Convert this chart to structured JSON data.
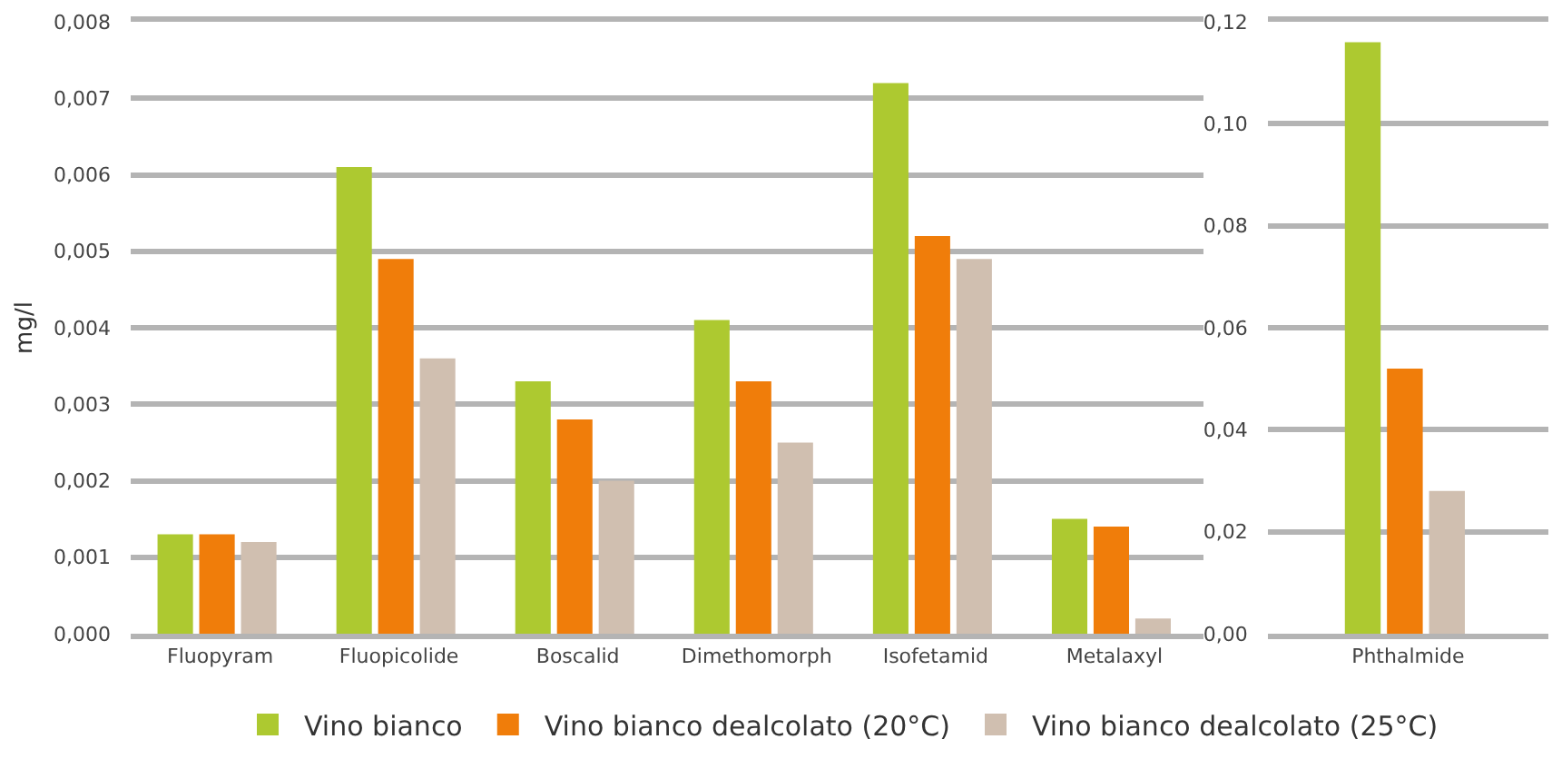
{
  "chart_data": [
    {
      "type": "bar",
      "ylabel": "mg/l",
      "categories": [
        "Fluopyram",
        "Fluopicolide",
        "Boscalid",
        "Dimethomorph",
        "Isofetamid",
        "Metalaxyl"
      ],
      "series": [
        {
          "name": "Vino bianco",
          "color": "#adc930",
          "values": [
            0.0013,
            0.0061,
            0.0033,
            0.0041,
            0.0072,
            0.0015
          ]
        },
        {
          "name": "Vino bianco dealcolato (20°C)",
          "color": "#f07d0a",
          "values": [
            0.0013,
            0.0049,
            0.0028,
            0.0033,
            0.0052,
            0.0014
          ]
        },
        {
          "name": "Vino bianco dealcolato (25°C)",
          "color": "#d0bfb0",
          "values": [
            0.0012,
            0.0036,
            0.002,
            0.0025,
            0.0049,
            0.0002
          ]
        }
      ],
      "ylim": [
        0,
        0.008
      ],
      "yticks": [
        {
          "value": 0,
          "label": "0,000"
        },
        {
          "value": 0.001,
          "label": "0,001"
        },
        {
          "value": 0.002,
          "label": "0,002"
        },
        {
          "value": 0.003,
          "label": "0,003"
        },
        {
          "value": 0.004,
          "label": "0,004"
        },
        {
          "value": 0.005,
          "label": "0,005"
        },
        {
          "value": 0.006,
          "label": "0,006"
        },
        {
          "value": 0.007,
          "label": "0,007"
        },
        {
          "value": 0.008,
          "label": "0,008"
        }
      ],
      "grid": "y",
      "legend": "bottom"
    },
    {
      "type": "bar",
      "categories": [
        "Phthalmide"
      ],
      "series": [
        {
          "color": "#adc930",
          "values": [
            0.116
          ]
        },
        {
          "color": "#f07d0a",
          "values": [
            0.052
          ]
        },
        {
          "color": "#d0bfb0",
          "values": [
            0.028
          ]
        }
      ],
      "ylim": [
        0,
        0.12
      ],
      "yticks": [
        {
          "value": 0,
          "label": "0,00"
        },
        {
          "value": 0.02,
          "label": "0,02"
        },
        {
          "value": 0.04,
          "label": "0,04"
        },
        {
          "value": 0.06,
          "label": "0,06"
        },
        {
          "value": 0.08,
          "label": "0,08"
        },
        {
          "value": 0.1,
          "label": "0,10"
        },
        {
          "value": 0.12,
          "label": "0,12"
        }
      ],
      "grid": "y"
    }
  ]
}
